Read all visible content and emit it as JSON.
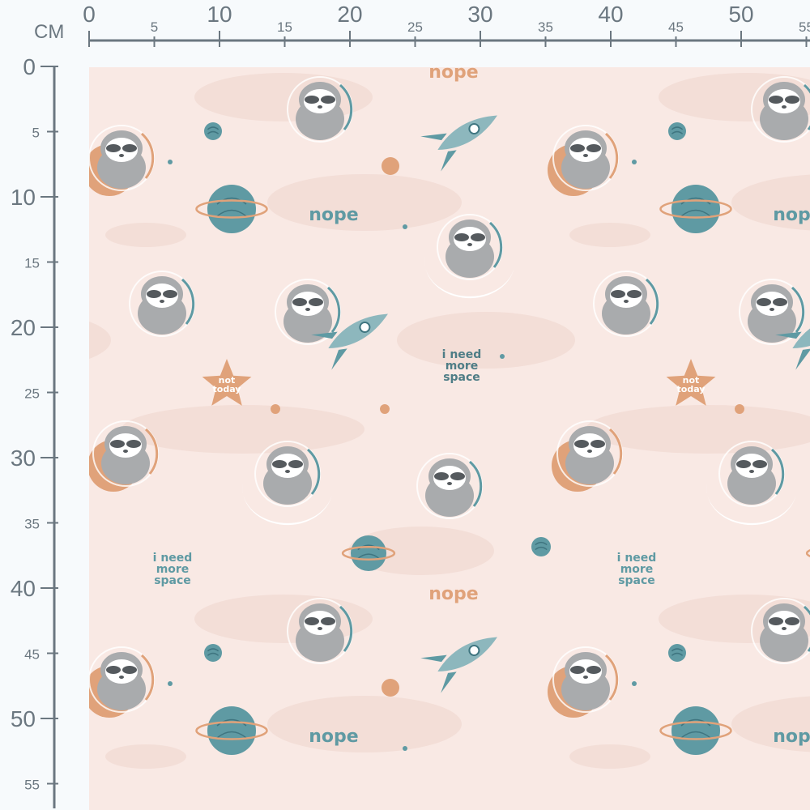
{
  "ruler": {
    "unit": "CM",
    "major_labels": [
      "0",
      "10",
      "20",
      "30",
      "40",
      "50"
    ],
    "minor_labels": [
      "5",
      "15",
      "25",
      "35",
      "45",
      "55"
    ],
    "color": "#6b7780"
  },
  "fabric": {
    "background": "#f9e9e4",
    "texts": {
      "nope": "nope",
      "need_space": [
        "i need",
        "more",
        "space"
      ],
      "not_today": [
        "not",
        "today"
      ]
    },
    "colors": {
      "teal": "#5f9aa3",
      "orange": "#e0a27a",
      "gray": "#a9abad",
      "dark": "#555a5e",
      "cloud": "#f1d9d2"
    }
  }
}
